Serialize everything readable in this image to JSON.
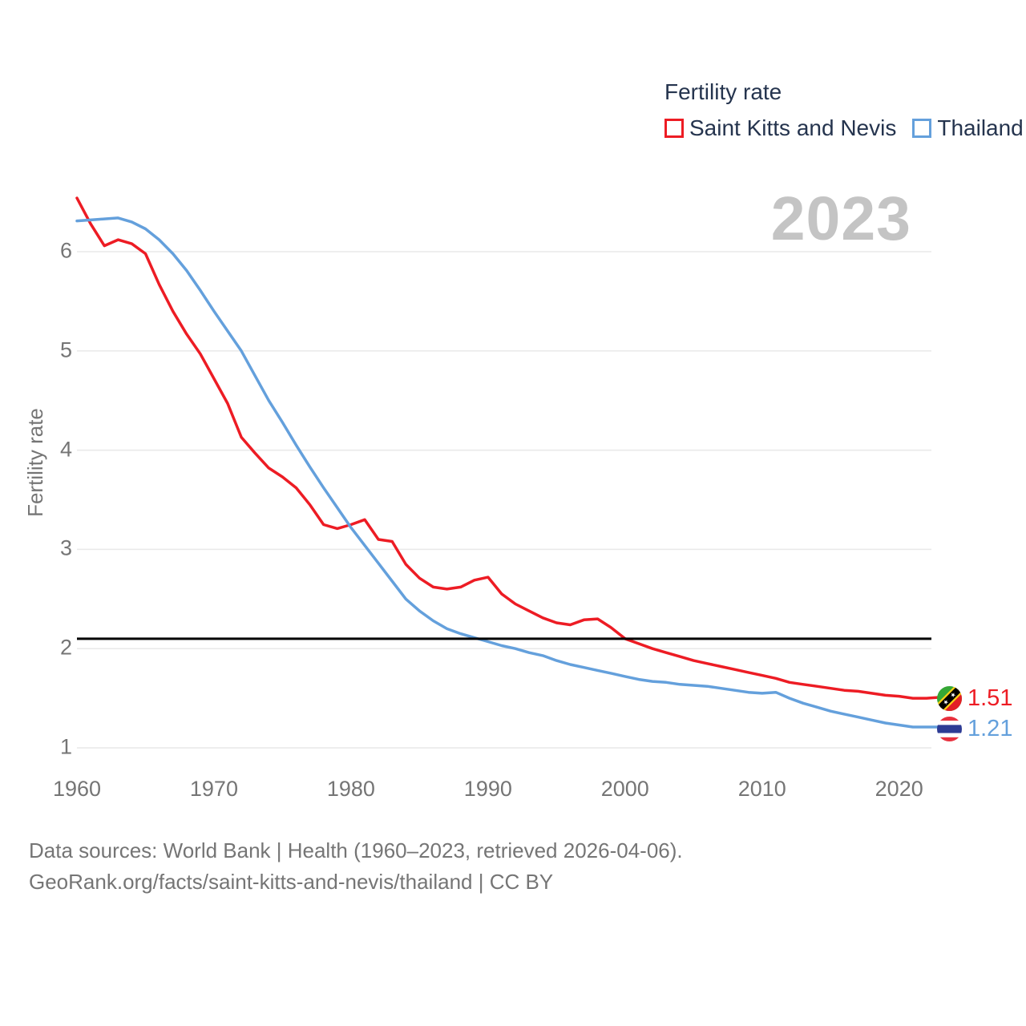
{
  "legend": {
    "title": "Fertility rate",
    "items": [
      {
        "label": "Saint Kitts and Nevis",
        "color": "#ed1c24"
      },
      {
        "label": "Thailand",
        "color": "#64a0dc"
      }
    ]
  },
  "watermark": "2023",
  "y_axis_title": "Fertility rate",
  "end_labels": [
    {
      "series": "Saint Kitts and Nevis",
      "value": "1.51",
      "flag": "saint-kitts-and-nevis-flag",
      "color": "#ed1c24"
    },
    {
      "series": "Thailand",
      "value": "1.21",
      "flag": "thailand-flag",
      "color": "#64a0dc"
    }
  ],
  "footer": {
    "line1": "Data sources: World Bank | Health (1960–2023, retrieved 2026-04-06).",
    "line2": "GeoRank.org/facts/saint-kitts-and-nevis/thailand | CC BY"
  },
  "colors": {
    "saint_kitts_and_nevis": "#ed1c24",
    "thailand": "#64a0dc",
    "reference_line": "#000000",
    "gridline": "#e9e9e9",
    "tick_text": "#757575",
    "legend_text": "#25344e",
    "watermark": "#c4c4c4"
  },
  "chart_data": {
    "type": "line",
    "title": "Fertility rate",
    "xlabel": "",
    "ylabel": "Fertility rate",
    "grid": "horizontal",
    "legend_position": "top-right",
    "xlim": [
      1960,
      2023
    ],
    "ylim": [
      1,
      6.7
    ],
    "yticks": [
      1,
      2,
      3,
      4,
      5,
      6
    ],
    "xticks": [
      1960,
      1970,
      1980,
      1990,
      2000,
      2010,
      2020
    ],
    "reference_line": 2.1,
    "x": [
      1960,
      1961,
      1962,
      1963,
      1964,
      1965,
      1966,
      1967,
      1968,
      1969,
      1970,
      1971,
      1972,
      1973,
      1974,
      1975,
      1976,
      1977,
      1978,
      1979,
      1980,
      1981,
      1982,
      1983,
      1984,
      1985,
      1986,
      1987,
      1988,
      1989,
      1990,
      1991,
      1992,
      1993,
      1994,
      1995,
      1996,
      1997,
      1998,
      1999,
      2000,
      2001,
      2002,
      2003,
      2004,
      2005,
      2006,
      2007,
      2008,
      2009,
      2010,
      2011,
      2012,
      2013,
      2014,
      2015,
      2016,
      2017,
      2018,
      2019,
      2020,
      2021,
      2022,
      2023
    ],
    "series": [
      {
        "name": "Saint Kitts and Nevis",
        "color": "#ed1c24",
        "last_value_label": "1.51",
        "values": [
          6.54,
          6.28,
          6.06,
          6.12,
          6.08,
          5.98,
          5.67,
          5.4,
          5.17,
          4.97,
          4.72,
          4.47,
          4.13,
          3.97,
          3.82,
          3.73,
          3.62,
          3.45,
          3.25,
          3.21,
          3.25,
          3.3,
          3.1,
          3.08,
          2.85,
          2.71,
          2.62,
          2.6,
          2.62,
          2.69,
          2.72,
          2.55,
          2.45,
          2.38,
          2.31,
          2.26,
          2.24,
          2.29,
          2.3,
          2.21,
          2.1,
          2.05,
          2.0,
          1.96,
          1.92,
          1.88,
          1.85,
          1.82,
          1.79,
          1.76,
          1.73,
          1.7,
          1.66,
          1.64,
          1.62,
          1.6,
          1.58,
          1.57,
          1.55,
          1.53,
          1.52,
          1.5,
          1.5,
          1.51
        ]
      },
      {
        "name": "Thailand",
        "color": "#64a0dc",
        "last_value_label": "1.21",
        "values": [
          6.31,
          6.32,
          6.33,
          6.34,
          6.3,
          6.23,
          6.12,
          5.98,
          5.81,
          5.61,
          5.4,
          5.2,
          5.0,
          4.75,
          4.5,
          4.28,
          4.05,
          3.83,
          3.62,
          3.42,
          3.22,
          3.04,
          2.86,
          2.68,
          2.5,
          2.38,
          2.28,
          2.2,
          2.15,
          2.11,
          2.07,
          2.03,
          2.0,
          1.96,
          1.93,
          1.88,
          1.84,
          1.81,
          1.78,
          1.75,
          1.72,
          1.69,
          1.67,
          1.66,
          1.64,
          1.63,
          1.62,
          1.6,
          1.58,
          1.56,
          1.55,
          1.56,
          1.5,
          1.45,
          1.41,
          1.37,
          1.34,
          1.31,
          1.28,
          1.25,
          1.23,
          1.21,
          1.21,
          1.21
        ]
      }
    ]
  }
}
